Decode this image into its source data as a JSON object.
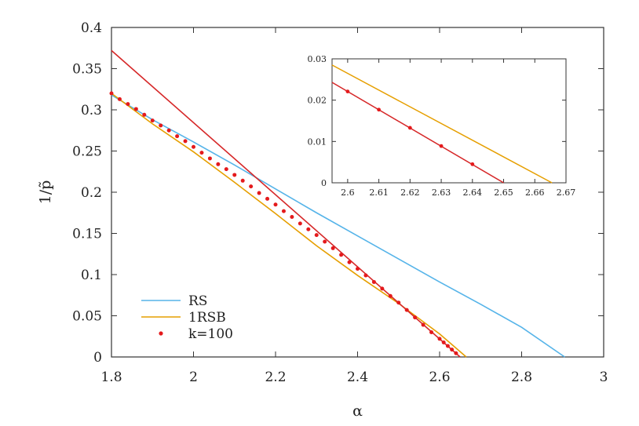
{
  "chart_data": [
    {
      "type": "line",
      "title": "",
      "xlabel": "α",
      "ylabel": "1/p̃",
      "xlim": [
        1.8,
        3.0
      ],
      "ylim": [
        0,
        0.4
      ],
      "xticks": [
        "1.8",
        "2",
        "2.2",
        "2.4",
        "2.6",
        "2.8",
        "3"
      ],
      "yticks": [
        "0",
        "0.05",
        "0.1",
        "0.15",
        "0.2",
        "0.25",
        "0.3",
        "0.35",
        "0.4"
      ],
      "legend_position": "bottom-left",
      "series": [
        {
          "name": "RS",
          "color": "#56b4e9",
          "style": "line",
          "x": [
            1.8,
            1.9,
            2.0,
            2.1,
            2.2,
            2.3,
            2.4,
            2.5,
            2.6,
            2.7,
            2.8,
            2.905
          ],
          "y": [
            0.318,
            0.288,
            0.261,
            0.233,
            0.204,
            0.175,
            0.147,
            0.119,
            0.091,
            0.064,
            0.036,
            0.0
          ]
        },
        {
          "name": "1RSB",
          "color": "#e69f00",
          "style": "line",
          "x": [
            1.8,
            1.9,
            2.0,
            2.1,
            2.2,
            2.3,
            2.4,
            2.5,
            2.6,
            2.665
          ],
          "y": [
            0.32,
            0.283,
            0.249,
            0.212,
            0.174,
            0.135,
            0.099,
            0.065,
            0.028,
            0.0
          ]
        },
        {
          "name": "",
          "color": "#d62728",
          "style": "line",
          "x": [
            1.8,
            2.65
          ],
          "y": [
            0.372,
            0.0
          ]
        },
        {
          "name": "k=100",
          "color": "#e41a1c",
          "style": "points",
          "x": [
            1.8,
            1.82,
            1.84,
            1.86,
            1.88,
            1.9,
            1.92,
            1.94,
            1.96,
            1.98,
            2.0,
            2.02,
            2.04,
            2.06,
            2.08,
            2.1,
            2.12,
            2.14,
            2.16,
            2.18,
            2.2,
            2.22,
            2.24,
            2.26,
            2.28,
            2.3,
            2.32,
            2.34,
            2.36,
            2.38,
            2.4,
            2.42,
            2.44,
            2.46,
            2.48,
            2.5,
            2.52,
            2.54,
            2.56,
            2.58,
            2.6,
            2.61,
            2.62,
            2.63,
            2.64
          ],
          "y": [
            0.32,
            0.313,
            0.307,
            0.301,
            0.294,
            0.287,
            0.281,
            0.275,
            0.268,
            0.262,
            0.255,
            0.248,
            0.241,
            0.234,
            0.228,
            0.221,
            0.214,
            0.207,
            0.199,
            0.192,
            0.185,
            0.177,
            0.17,
            0.162,
            0.155,
            0.148,
            0.14,
            0.132,
            0.124,
            0.115,
            0.107,
            0.099,
            0.091,
            0.083,
            0.074,
            0.066,
            0.057,
            0.048,
            0.039,
            0.03,
            0.022,
            0.0176,
            0.0133,
            0.0089,
            0.0045
          ]
        }
      ]
    },
    {
      "type": "line",
      "title": "",
      "inset": true,
      "xlim": [
        2.595,
        2.67
      ],
      "ylim": [
        0,
        0.03
      ],
      "xticks": [
        "2.6",
        "2.61",
        "2.62",
        "2.63",
        "2.64",
        "2.65",
        "2.66",
        "2.67"
      ],
      "yticks": [
        "0",
        "0.01",
        "0.02",
        "0.03"
      ],
      "series": [
        {
          "name": "1RSB",
          "color": "#e69f00",
          "style": "line",
          "x": [
            2.595,
            2.6655
          ],
          "y": [
            0.0285,
            0.0
          ]
        },
        {
          "name": "",
          "color": "#d62728",
          "style": "line",
          "x": [
            2.595,
            2.65
          ],
          "y": [
            0.0243,
            0.0
          ]
        },
        {
          "name": "k=100",
          "color": "#e41a1c",
          "style": "points",
          "x": [
            2.6,
            2.61,
            2.62,
            2.63,
            2.64
          ],
          "y": [
            0.0221,
            0.0177,
            0.0133,
            0.0089,
            0.0045
          ]
        }
      ]
    }
  ]
}
